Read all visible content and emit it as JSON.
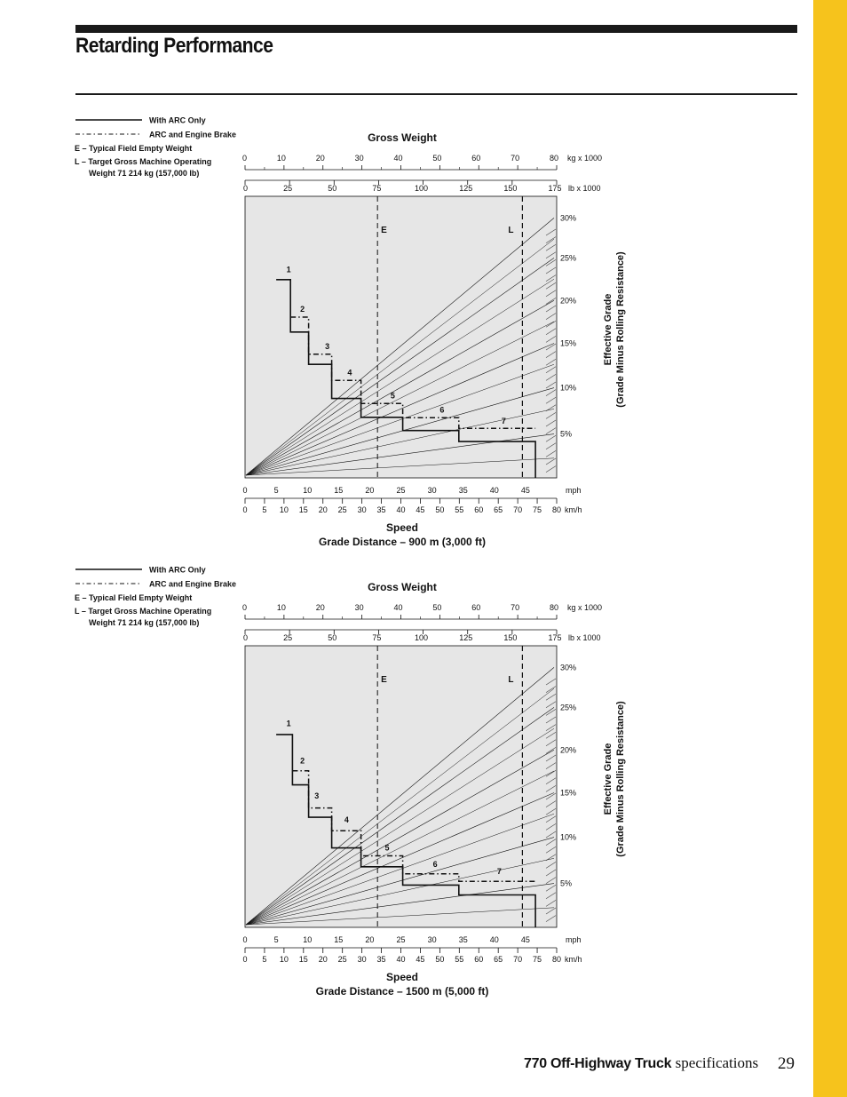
{
  "header": {
    "title": "Retarding Performance"
  },
  "footer": {
    "product": "770 Off-Highway Truck",
    "suffix": "specifications",
    "page_number": "29"
  },
  "colors": {
    "accent_bar": "#f6c31c",
    "plot_background": "#e6e6e6",
    "ink": "#111111"
  },
  "legend": {
    "solid": "With ARC Only",
    "dashdot": "ARC and Engine Brake",
    "empty": "E – Typical Field Empty Weight",
    "loaded_line1": "L – Target Gross Machine Operating",
    "loaded_line2": "Weight 71 214 kg (157,000 lb)"
  },
  "axis_text": {
    "top_title": "Gross Weight",
    "kg_unit": "kg x 1000",
    "lb_unit": "lb x 1000",
    "mph_unit": "mph",
    "kmh_unit": "km/h",
    "speed_title": "Speed",
    "grade_title_line1": "Effective Grade",
    "grade_title_line2": "(Grade Minus Rolling Resistance)",
    "marker_e": "E",
    "marker_l": "L"
  },
  "chart_data": [
    {
      "type": "line",
      "title": "Grade Distance – 900 m (3,000 ft)",
      "xlabel": "Speed",
      "x_mph": {
        "range": [
          0,
          50
        ],
        "ticks": [
          "0",
          "5",
          "10",
          "15",
          "20",
          "25",
          "30",
          "35",
          "40",
          "45"
        ]
      },
      "x_kmh": {
        "range": [
          0,
          80
        ],
        "ticks": [
          "0",
          "5",
          "10",
          "15",
          "20",
          "25",
          "30",
          "35",
          "40",
          "45",
          "50",
          "55",
          "60",
          "65",
          "70",
          "75",
          "80"
        ]
      },
      "top_kg": {
        "range": [
          0,
          80
        ],
        "ticks": [
          "0",
          "10",
          "20",
          "30",
          "40",
          "50",
          "60",
          "70",
          "80"
        ]
      },
      "top_lb": {
        "range": [
          0,
          175
        ],
        "ticks": [
          "0",
          "25",
          "50",
          "75",
          "100",
          "125",
          "150",
          "175"
        ]
      },
      "grade_labels": [
        "30%",
        "25%",
        "20%",
        "15%",
        "10%",
        "5%"
      ],
      "grade_label_y": [
        0.923,
        0.781,
        0.63,
        0.478,
        0.32,
        0.156
      ],
      "empty_weight_kg": 34,
      "loaded_weight_kg": 71.2,
      "gear_labels": [
        "1",
        "2",
        "3",
        "4",
        "5",
        "6",
        "7"
      ],
      "series": [
        {
          "name": "With ARC Only",
          "style": "solid",
          "points": [
            [
              5,
              0.704
            ],
            [
              7.3,
              0.704
            ],
            [
              7.3,
              0.518
            ],
            [
              10.2,
              0.518
            ],
            [
              10.2,
              0.403
            ],
            [
              13.9,
              0.403
            ],
            [
              13.9,
              0.282
            ],
            [
              18.6,
              0.282
            ],
            [
              18.6,
              0.215
            ],
            [
              25.3,
              0.215
            ],
            [
              25.3,
              0.168
            ],
            [
              34.3,
              0.168
            ],
            [
              34.3,
              0.129
            ],
            [
              46.6,
              0.129
            ],
            [
              46.6,
              0
            ]
          ]
        },
        {
          "name": "ARC and Engine Brake",
          "style": "dash-dot",
          "points": [
            [
              7.3,
              0.571
            ],
            [
              10.2,
              0.571
            ],
            [
              10.2,
              0.439
            ],
            [
              13.9,
              0.439
            ],
            [
              13.9,
              0.346
            ],
            [
              18.6,
              0.346
            ],
            [
              18.6,
              0.264
            ],
            [
              25.3,
              0.264
            ],
            [
              25.3,
              0.214
            ],
            [
              34.3,
              0.214
            ],
            [
              34.3,
              0.176
            ],
            [
              46.6,
              0.176
            ]
          ]
        }
      ],
      "gear_label_points": [
        [
          7.0,
          0.73
        ],
        [
          9.2,
          0.59
        ],
        [
          13.2,
          0.458
        ],
        [
          16.8,
          0.364
        ],
        [
          23.7,
          0.282
        ],
        [
          31.6,
          0.232
        ],
        [
          41.5,
          0.192
        ]
      ]
    },
    {
      "type": "line",
      "title": "Grade Distance – 1500 m (5,000 ft)",
      "xlabel": "Speed",
      "x_mph": {
        "range": [
          0,
          50
        ],
        "ticks": [
          "0",
          "5",
          "10",
          "15",
          "20",
          "25",
          "30",
          "35",
          "40",
          "45"
        ]
      },
      "x_kmh": {
        "range": [
          0,
          80
        ],
        "ticks": [
          "0",
          "5",
          "10",
          "15",
          "20",
          "25",
          "30",
          "35",
          "40",
          "45",
          "50",
          "55",
          "60",
          "65",
          "70",
          "75",
          "80"
        ]
      },
      "top_kg": {
        "range": [
          0,
          80
        ],
        "ticks": [
          "0",
          "10",
          "20",
          "30",
          "40",
          "50",
          "60",
          "70",
          "80"
        ]
      },
      "top_lb": {
        "range": [
          0,
          175
        ],
        "ticks": [
          "0",
          "25",
          "50",
          "75",
          "100",
          "125",
          "150",
          "175"
        ]
      },
      "grade_labels": [
        "30%",
        "25%",
        "20%",
        "15%",
        "10%",
        "5%"
      ],
      "grade_label_y": [
        0.923,
        0.781,
        0.63,
        0.478,
        0.32,
        0.156
      ],
      "empty_weight_kg": 34,
      "loaded_weight_kg": 71.2,
      "gear_labels": [
        "1",
        "2",
        "3",
        "4",
        "5",
        "6",
        "7"
      ],
      "series": [
        {
          "name": "With ARC Only",
          "style": "solid",
          "points": [
            [
              5,
              0.685
            ],
            [
              7.6,
              0.685
            ],
            [
              7.6,
              0.506
            ],
            [
              10.2,
              0.506
            ],
            [
              10.2,
              0.391
            ],
            [
              13.9,
              0.391
            ],
            [
              13.9,
              0.282
            ],
            [
              18.6,
              0.282
            ],
            [
              18.6,
              0.215
            ],
            [
              25.3,
              0.215
            ],
            [
              25.3,
              0.15
            ],
            [
              34.3,
              0.15
            ],
            [
              34.3,
              0.115
            ],
            [
              46.6,
              0.115
            ],
            [
              46.6,
              0
            ]
          ]
        },
        {
          "name": "ARC and Engine Brake",
          "style": "dash-dot",
          "points": [
            [
              7.6,
              0.556
            ],
            [
              10.2,
              0.556
            ],
            [
              10.2,
              0.424
            ],
            [
              13.9,
              0.424
            ],
            [
              13.9,
              0.343
            ],
            [
              18.6,
              0.343
            ],
            [
              18.6,
              0.254
            ],
            [
              25.3,
              0.254
            ],
            [
              25.3,
              0.19
            ],
            [
              34.3,
              0.19
            ],
            [
              34.3,
              0.163
            ],
            [
              46.6,
              0.163
            ]
          ]
        }
      ],
      "gear_label_points": [
        [
          7.0,
          0.715
        ],
        [
          9.2,
          0.582
        ],
        [
          11.5,
          0.457
        ],
        [
          16.3,
          0.373
        ],
        [
          22.8,
          0.273
        ],
        [
          30.5,
          0.215
        ],
        [
          40.8,
          0.19
        ]
      ]
    }
  ]
}
